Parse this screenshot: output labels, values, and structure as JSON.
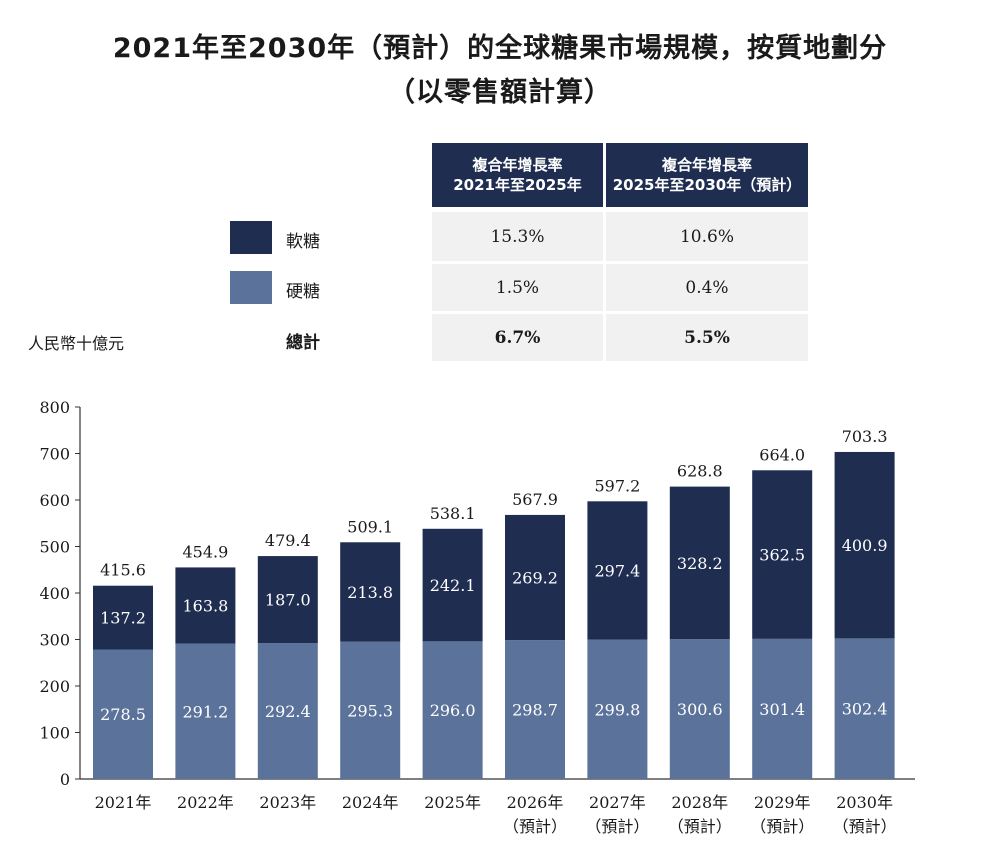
{
  "title_line1": "2021年至2030年（預計）的全球糖果市場規模，按質地劃分",
  "title_line2": "（以零售額計算）",
  "unit_label": "人民幣十億元",
  "cagr_table": {
    "header_1": [
      "複合年增長率",
      "2021年至2025年"
    ],
    "header_2": [
      "複合年增長率",
      "2025年至2030年（預計）"
    ],
    "rows": [
      {
        "label": "軟糖",
        "v1": "15.3%",
        "v2": "10.6%",
        "color": "#1f2d50"
      },
      {
        "label": "硬糖",
        "v1": "1.5%",
        "v2": "0.4%",
        "color": "#5b739a"
      },
      {
        "label": "總計",
        "v1": "6.7%",
        "v2": "5.5%"
      }
    ]
  },
  "chart_data": {
    "type": "bar",
    "stacked": true,
    "categories": [
      "2021年",
      "2022年",
      "2023年",
      "2024年",
      "2025年",
      "2026年",
      "2027年",
      "2028年",
      "2029年",
      "2030年"
    ],
    "category_sublabels": [
      "",
      "",
      "",
      "",
      "",
      "（預計）",
      "（預計）",
      "（預計）",
      "（預計）",
      "（預計）"
    ],
    "series": [
      {
        "name": "硬糖",
        "color": "#5b739a",
        "values": [
          278.5,
          291.2,
          292.4,
          295.3,
          296.0,
          298.7,
          299.8,
          300.6,
          301.4,
          302.4
        ]
      },
      {
        "name": "軟糖",
        "color": "#1f2d50",
        "values": [
          137.2,
          163.8,
          187.0,
          213.8,
          242.1,
          269.2,
          297.4,
          328.2,
          362.5,
          400.9
        ]
      }
    ],
    "totals": [
      415.6,
      454.9,
      479.4,
      509.1,
      538.1,
      567.9,
      597.2,
      628.8,
      664.0,
      703.3
    ],
    "ylim": [
      0,
      800
    ],
    "yticks": [
      0,
      100,
      200,
      300,
      400,
      500,
      600,
      700,
      800
    ],
    "grid": false
  }
}
